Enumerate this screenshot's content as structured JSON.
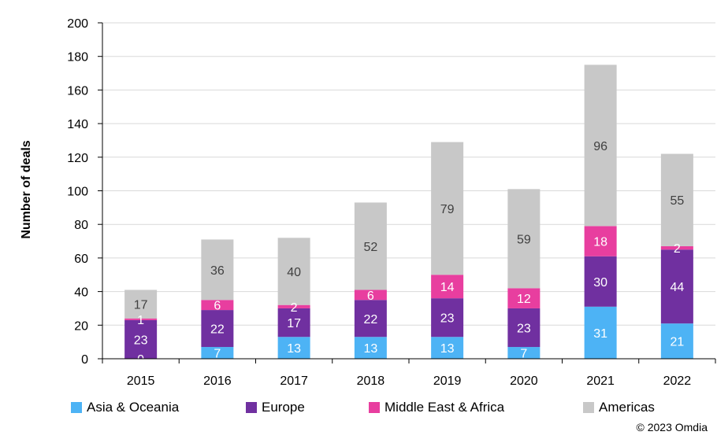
{
  "chart_data": {
    "type": "bar",
    "stacked": true,
    "categories": [
      "2015",
      "2016",
      "2017",
      "2018",
      "2019",
      "2020",
      "2021",
      "2022"
    ],
    "series": [
      {
        "name": "Asia & Oceania",
        "color": "#4db3f5",
        "values": [
          0,
          7,
          13,
          13,
          13,
          7,
          31,
          21
        ]
      },
      {
        "name": "Europe",
        "color": "#7030a0",
        "values": [
          23,
          22,
          17,
          22,
          23,
          23,
          30,
          44
        ]
      },
      {
        "name": "Middle East & Africa",
        "color": "#e83e9f",
        "values": [
          1,
          6,
          2,
          6,
          14,
          12,
          18,
          2
        ]
      },
      {
        "name": "Americas",
        "color": "#c8c8c8",
        "values": [
          17,
          36,
          40,
          52,
          79,
          59,
          96,
          55
        ]
      }
    ],
    "ylabel": "Number of deals",
    "xlabel": "",
    "ylim": [
      0,
      200
    ],
    "yticks": [
      0,
      20,
      40,
      60,
      80,
      100,
      120,
      140,
      160,
      180,
      200
    ],
    "grid": true,
    "legend_position": "bottom",
    "label_colors": {
      "light": "#ffffff",
      "dark": "#404040"
    }
  },
  "credit": "© 2023 Omdia"
}
